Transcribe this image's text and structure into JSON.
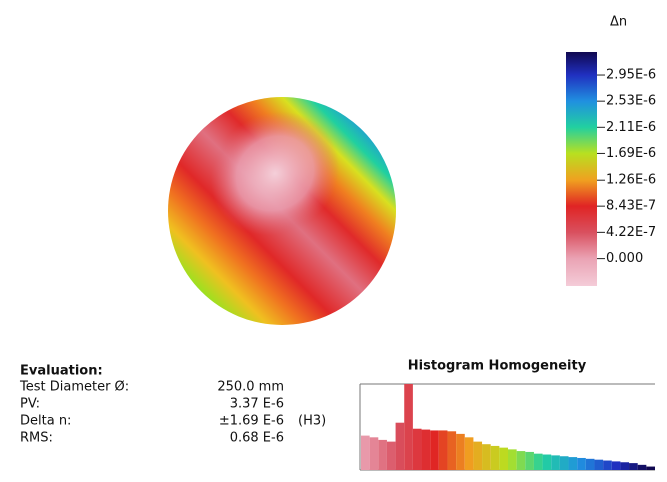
{
  "phase_map": {
    "colorbar": {
      "label": "Δn",
      "clim": [
        -4.4e-07,
        3.32e-06
      ],
      "ticks": [
        {
          "value": 2.95e-06,
          "label": "2.95E-6"
        },
        {
          "value": 2.53e-06,
          "label": "2.53E-6"
        },
        {
          "value": 2.11e-06,
          "label": "2.11E-6"
        },
        {
          "value": 1.69e-06,
          "label": "1.69E-6"
        },
        {
          "value": 1.26e-06,
          "label": "1.26E-6"
        },
        {
          "value": 8.43e-07,
          "label": "8.43E-7"
        },
        {
          "value": 4.22e-07,
          "label": "4.22E-7"
        },
        {
          "value": 0,
          "label": "0.000"
        }
      ],
      "colorscale": [
        {
          "value": -4.4e-07,
          "color": "#f4ccd8"
        },
        {
          "value": 0,
          "color": "#eaa3b4"
        },
        {
          "value": 4.22e-07,
          "color": "#d9505f"
        },
        {
          "value": 8.43e-07,
          "color": "#e02424"
        },
        {
          "value": 1.26e-06,
          "color": "#f0a020"
        },
        {
          "value": 1.69e-06,
          "color": "#b8e020"
        },
        {
          "value": 2.11e-06,
          "color": "#22d0a0"
        },
        {
          "value": 2.53e-06,
          "color": "#2090e0"
        },
        {
          "value": 2.95e-06,
          "color": "#2030c0"
        },
        {
          "value": 3.32e-06,
          "color": "#100850"
        }
      ]
    }
  },
  "evaluation": {
    "title": "Evaluation:",
    "rows": [
      [
        "Test Diameter Ø:",
        "250.0 mm"
      ],
      [
        "PV:",
        "3.37 E-6"
      ],
      [
        "Delta n:",
        "±1.69 E-6",
        "(H3)"
      ],
      [
        "RMS:",
        "0.68 E-6"
      ]
    ]
  },
  "chart_data": {
    "type": "histogram",
    "title": "Histogram Homogeneity",
    "bins": [
      0,
      1e-07,
      2e-07,
      3e-07,
      4e-07,
      5e-07,
      6e-07,
      7e-07,
      8e-07,
      9e-07,
      1e-06,
      1.1e-06,
      1.2e-06,
      1.3e-06,
      1.4e-06,
      1.5e-06,
      1.6e-06,
      1.7e-06,
      1.8e-06,
      1.9e-06,
      2e-06,
      2.1e-06,
      2.2e-06,
      2.3e-06,
      2.4e-06,
      2.5e-06,
      2.6e-06,
      2.7e-06,
      2.8e-06,
      2.9e-06,
      3e-06,
      3.1e-06,
      3.2e-06,
      3.3e-06,
      3.4e-06
    ],
    "values": [
      40,
      38,
      35,
      33,
      55,
      100,
      48,
      47,
      46,
      46,
      45,
      42,
      38,
      33,
      30,
      28,
      26,
      24,
      22,
      21,
      19,
      18,
      17,
      16,
      15,
      14,
      13,
      12,
      11,
      10,
      9,
      8,
      6,
      4
    ],
    "xlim": [
      0,
      3.4e-06
    ],
    "ylim": [
      0,
      100
    ]
  }
}
